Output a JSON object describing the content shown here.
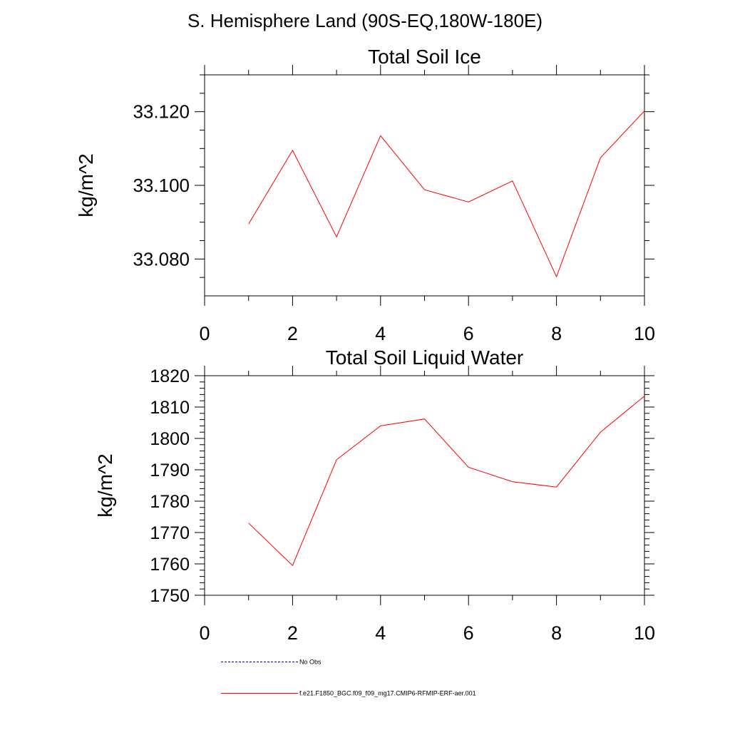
{
  "page": {
    "title": "S. Hemisphere Land (90S-EQ,180W-180E)"
  },
  "chart_data": [
    {
      "type": "line",
      "title": "Total Soil Ice",
      "xlabel": "",
      "ylabel": "kg/m^2",
      "xlim": [
        0,
        10
      ],
      "ylim": [
        33.07,
        33.13
      ],
      "xticks": [
        0,
        2,
        4,
        6,
        8,
        10
      ],
      "xtick_labels": [
        "0",
        "2",
        "4",
        "6",
        "8",
        "10"
      ],
      "xminor": [
        1,
        3,
        5,
        7,
        9
      ],
      "yticks": [
        33.08,
        33.1,
        33.12
      ],
      "ytick_labels": [
        "33.080",
        "33.100",
        "33.120"
      ],
      "yminor": [
        33.075,
        33.085,
        33.09,
        33.095,
        33.105,
        33.11,
        33.115,
        33.125,
        33.13
      ],
      "grid": false,
      "series": [
        {
          "name": "f.e21.F1850_BGC.f09_f09_mg17.CMIP6-RFMIP-ERF-aer.001",
          "color": "#ff0000",
          "x": [
            1,
            2,
            3,
            4,
            5,
            6,
            7,
            8,
            9,
            10
          ],
          "values": [
            33.0895,
            33.1095,
            33.086,
            33.1135,
            33.0988,
            33.0955,
            33.1012,
            33.0752,
            33.1075,
            33.1202
          ]
        }
      ]
    },
    {
      "type": "line",
      "title": "Total Soil Liquid Water",
      "xlabel": "",
      "ylabel": "kg/m^2",
      "xlim": [
        0,
        10
      ],
      "ylim": [
        1750,
        1820
      ],
      "xticks": [
        0,
        2,
        4,
        6,
        8,
        10
      ],
      "xtick_labels": [
        "0",
        "2",
        "4",
        "6",
        "8",
        "10"
      ],
      "xminor": [
        1,
        3,
        5,
        7,
        9
      ],
      "yticks": [
        1750,
        1760,
        1770,
        1780,
        1790,
        1800,
        1810,
        1820
      ],
      "ytick_labels": [
        "1750",
        "1760",
        "1770",
        "1780",
        "1790",
        "1800",
        "1810",
        "1820"
      ],
      "yminor": [
        1752,
        1754,
        1756,
        1758,
        1762,
        1764,
        1766,
        1768,
        1772,
        1774,
        1776,
        1778,
        1782,
        1784,
        1786,
        1788,
        1792,
        1794,
        1796,
        1798,
        1802,
        1804,
        1806,
        1808,
        1812,
        1814,
        1816,
        1818
      ],
      "grid": false,
      "series": [
        {
          "name": "f.e21.F1850_BGC.f09_f09_mg17.CMIP6-RFMIP-ERF-aer.001",
          "color": "#ff0000",
          "x": [
            1,
            2,
            3,
            4,
            5,
            6,
            7,
            8,
            9,
            10
          ],
          "values": [
            1773,
            1759.5,
            1793.2,
            1804,
            1806.2,
            1790.8,
            1786.2,
            1784.5,
            1802,
            1813.5
          ]
        }
      ]
    }
  ],
  "legend": {
    "items": [
      {
        "label": "No Obs",
        "color": "#00007f",
        "style": "dashed"
      },
      {
        "label": "f.e21.F1850_BGC.f09_f09_mg17.CMIP6-RFMIP-ERF-aer.001",
        "color": "#ff0000",
        "style": "solid"
      }
    ]
  }
}
